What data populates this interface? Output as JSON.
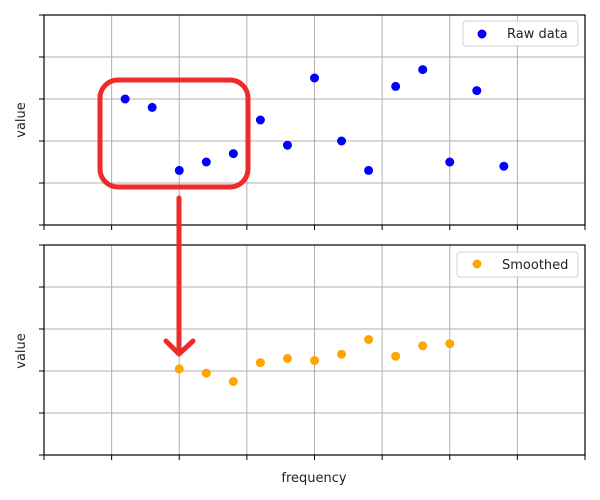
{
  "chart_data": [
    {
      "type": "scatter",
      "title": "",
      "xlabel": "",
      "ylabel": "value",
      "xlim": [
        0,
        8
      ],
      "ylim": [
        0,
        5
      ],
      "grid": true,
      "legend_position": "upper right",
      "series": [
        {
          "name": "Raw data",
          "color": "#0000ff",
          "x": [
            1.2,
            1.6,
            2.0,
            2.4,
            2.8,
            3.2,
            3.6,
            4.0,
            4.4,
            4.8,
            5.2,
            5.6,
            6.0,
            6.4,
            6.8
          ],
          "y": [
            3.0,
            2.8,
            1.3,
            1.5,
            1.7,
            2.5,
            1.9,
            3.5,
            2.0,
            1.3,
            3.3,
            3.7,
            1.5,
            3.2,
            1.4
          ]
        }
      ]
    },
    {
      "type": "scatter",
      "title": "",
      "xlabel": "frequency",
      "ylabel": "value",
      "xlim": [
        0,
        8
      ],
      "ylim": [
        0,
        5
      ],
      "grid": true,
      "legend_position": "upper right",
      "series": [
        {
          "name": "Smoothed",
          "color": "#ffa500",
          "x": [
            2.0,
            2.4,
            2.8,
            3.2,
            3.6,
            4.0,
            4.4,
            4.8,
            5.2,
            5.6,
            6.0
          ],
          "y": [
            2.05,
            1.95,
            1.75,
            2.2,
            2.3,
            2.25,
            2.4,
            2.75,
            2.35,
            2.6,
            2.65
          ]
        }
      ]
    }
  ],
  "annotation": {
    "type": "highlight-box-with-arrow",
    "color": "#ee2a2a",
    "description": "Red rounded box around raw points near x=1.2–2.8, arrow pointing down to first smoothed point"
  },
  "labels": {
    "top_ylabel": "value",
    "bottom_ylabel": "value",
    "xlabel": "frequency",
    "legend_top": "Raw data",
    "legend_bottom": "Smoothed"
  }
}
